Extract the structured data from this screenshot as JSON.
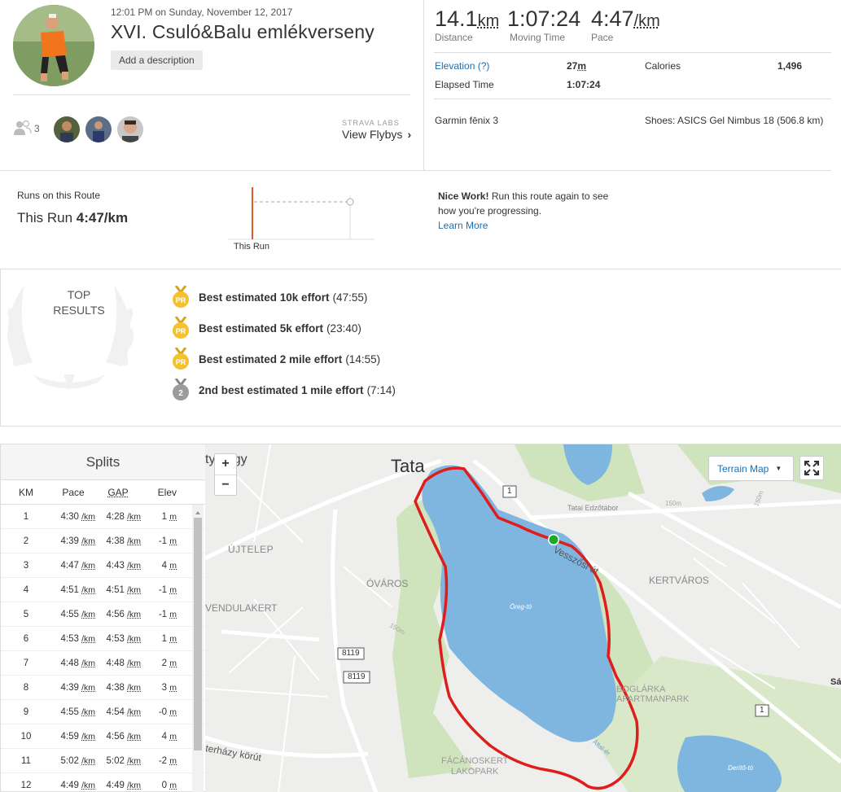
{
  "activity": {
    "date": "12:01 PM on Sunday, November 12, 2017",
    "title": "XVI. Csuló&Balu emlékverseny",
    "add_description": "Add a description"
  },
  "stats": {
    "distance": {
      "value": "14.1",
      "unit": "km",
      "label": "Distance"
    },
    "moving_time": {
      "value": "1:07:24",
      "label": "Moving Time"
    },
    "pace": {
      "value": "4:47",
      "unit": "/km",
      "label": "Pace"
    }
  },
  "details": {
    "elevation_label": "Elevation (?)",
    "elevation_value": "27",
    "elevation_unit": "m",
    "calories_label": "Calories",
    "calories_value": "1,496",
    "elapsed_label": "Elapsed Time",
    "elapsed_value": "1:07:24",
    "device": "Garmin fēnix 3",
    "shoes": "Shoes: ASICS Gel Nimbus 18 (506.8 km)"
  },
  "social": {
    "athlete_count": "3",
    "labs": "STRAVA LABS",
    "flybys": "View Flybys"
  },
  "routes": {
    "heading": "Runs on this Route",
    "this_run_prefix": "This Run",
    "this_run_pace": "4:47/km",
    "axis_label": "This Run",
    "nice_work": "Nice Work!",
    "nice_text": "Run this route again to see how you're progressing.",
    "learn_more": "Learn More"
  },
  "top_results": {
    "title_line1": "TOP",
    "title_line2": "RESULTS",
    "items": [
      {
        "medal": "PR",
        "medal_color": "#f5c12e",
        "label": "Best estimated 10k effort",
        "value": "(47:55)"
      },
      {
        "medal": "PR",
        "medal_color": "#f5c12e",
        "label": "Best estimated 5k effort",
        "value": "(23:40)"
      },
      {
        "medal": "PR",
        "medal_color": "#f5c12e",
        "label": "Best estimated 2 mile effort",
        "value": "(14:55)"
      },
      {
        "medal": "2",
        "medal_color": "#9b9b9b",
        "label": "2nd best estimated 1 mile effort",
        "value": "(7:14)"
      }
    ]
  },
  "splits": {
    "title": "Splits",
    "headers": {
      "km": "KM",
      "pace": "Pace",
      "gap": "GAP",
      "elev": "Elev"
    },
    "unit_pace": "/km",
    "unit_elev": "m",
    "rows": [
      {
        "km": "1",
        "pace": "4:30",
        "gap": "4:28",
        "elev": "1"
      },
      {
        "km": "2",
        "pace": "4:39",
        "gap": "4:38",
        "elev": "-1"
      },
      {
        "km": "3",
        "pace": "4:47",
        "gap": "4:43",
        "elev": "4"
      },
      {
        "km": "4",
        "pace": "4:51",
        "gap": "4:51",
        "elev": "-1"
      },
      {
        "km": "5",
        "pace": "4:55",
        "gap": "4:56",
        "elev": "-1"
      },
      {
        "km": "6",
        "pace": "4:53",
        "gap": "4:53",
        "elev": "1"
      },
      {
        "km": "7",
        "pace": "4:48",
        "gap": "4:48",
        "elev": "2"
      },
      {
        "km": "8",
        "pace": "4:39",
        "gap": "4:38",
        "elev": "3"
      },
      {
        "km": "9",
        "pace": "4:55",
        "gap": "4:54",
        "elev": "-0"
      },
      {
        "km": "10",
        "pace": "4:59",
        "gap": "4:56",
        "elev": "4"
      },
      {
        "km": "11",
        "pace": "5:02",
        "gap": "5:02",
        "elev": "-2"
      },
      {
        "km": "12",
        "pace": "4:49",
        "gap": "4:49",
        "elev": "0"
      }
    ]
  },
  "map": {
    "terrain_button": "Terrain Map",
    "zoom_in": "+",
    "zoom_out": "−",
    "labels": {
      "tata": "Tata",
      "hegy": "ty hegy",
      "ujtelep": "ÚJTELEP",
      "ovaros": "ÓVÁROS",
      "vendulakert": "VENDULAKERT",
      "kertvaros": "KERTVÁROS",
      "boglarka1": "BOGLÁRKA",
      "boglarka2": "APARTMANPARK",
      "facanoskert1": "FÁCÁNOSKERT",
      "facanoskert2": "LAKOPARK",
      "oreg_to": "Öreg-tó",
      "derito": "Derítő-tó",
      "road1": "1",
      "road1b": "1",
      "road8119a": "8119",
      "road8119b": "8119",
      "vesszolosi": "Vesszősi út",
      "edzotabor": "Tatai Edzőtábor",
      "erhazy": "terházy körút",
      "elev150a": "150m",
      "elev150b": "150m",
      "elev150c": "150m",
      "sa": "Sá",
      "altarcsa": "Által-ér"
    },
    "colors": {
      "water": "#7fb6e0",
      "route": "#e01d1d",
      "park": "#cfe3bd",
      "start": "#1aaa2e"
    }
  }
}
